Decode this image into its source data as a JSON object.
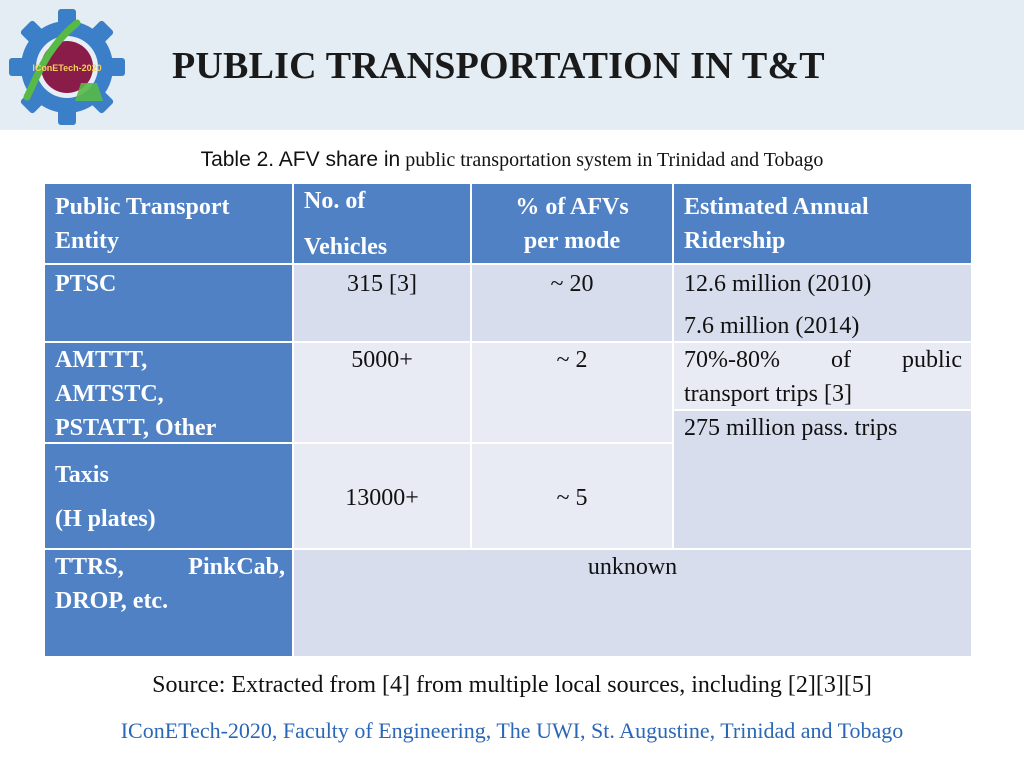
{
  "slide": {
    "title": "PUBLIC TRANSPORTATION IN T&T",
    "logo_text": "IConETech-2020",
    "caption": {
      "part1": "Table 2. AFV share in",
      "part2": "public transportation system in Trinidad and Tobago"
    },
    "source": "Source: Extracted from [4] from multiple local sources, including [2][3][5]",
    "footer": "IConETech-2020, Faculty of Engineering, The UWI, St. Augustine, Trinidad and Tobago"
  },
  "table": {
    "headers": {
      "entity_line1": "Public Transport",
      "entity_line2": "Entity",
      "vehicles_line1": "No. of",
      "vehicles_line2": "Vehicles",
      "afv_line1": "% of AFVs",
      "afv_line2": "per mode",
      "ridership_line1": "Estimated Annual",
      "ridership_line2": "Ridership"
    },
    "rows": {
      "ptsc": {
        "entity": "PTSC",
        "vehicles": "315 [3]",
        "afv": "~ 20",
        "ridership_line1": "12.6 million (2010)",
        "ridership_line2": "7.6 million (2014)"
      },
      "maxi": {
        "entity_line1": "AMTTT,",
        "entity_line2": "AMTSTC,",
        "entity_line3": "PSTATT, Other",
        "vehicles": "5000+",
        "afv": "~ 2",
        "ridership_line1": "70%-80% of public",
        "ridership_line2": "transport trips [3]",
        "ridership_line3": "275 million pass. trips"
      },
      "taxis": {
        "entity_line1": "Taxis",
        "entity_line2": "(H plates)",
        "vehicles": "13000+",
        "afv": "~ 5"
      },
      "rideshare": {
        "entity_line1": "TTRS, PinkCab,",
        "entity_line2": "DROP, etc.",
        "merged": "unknown"
      }
    }
  },
  "colors": {
    "header_blue": "#4f81c4",
    "cell_light": "#d7dded",
    "footer_text": "#2a67b8"
  }
}
